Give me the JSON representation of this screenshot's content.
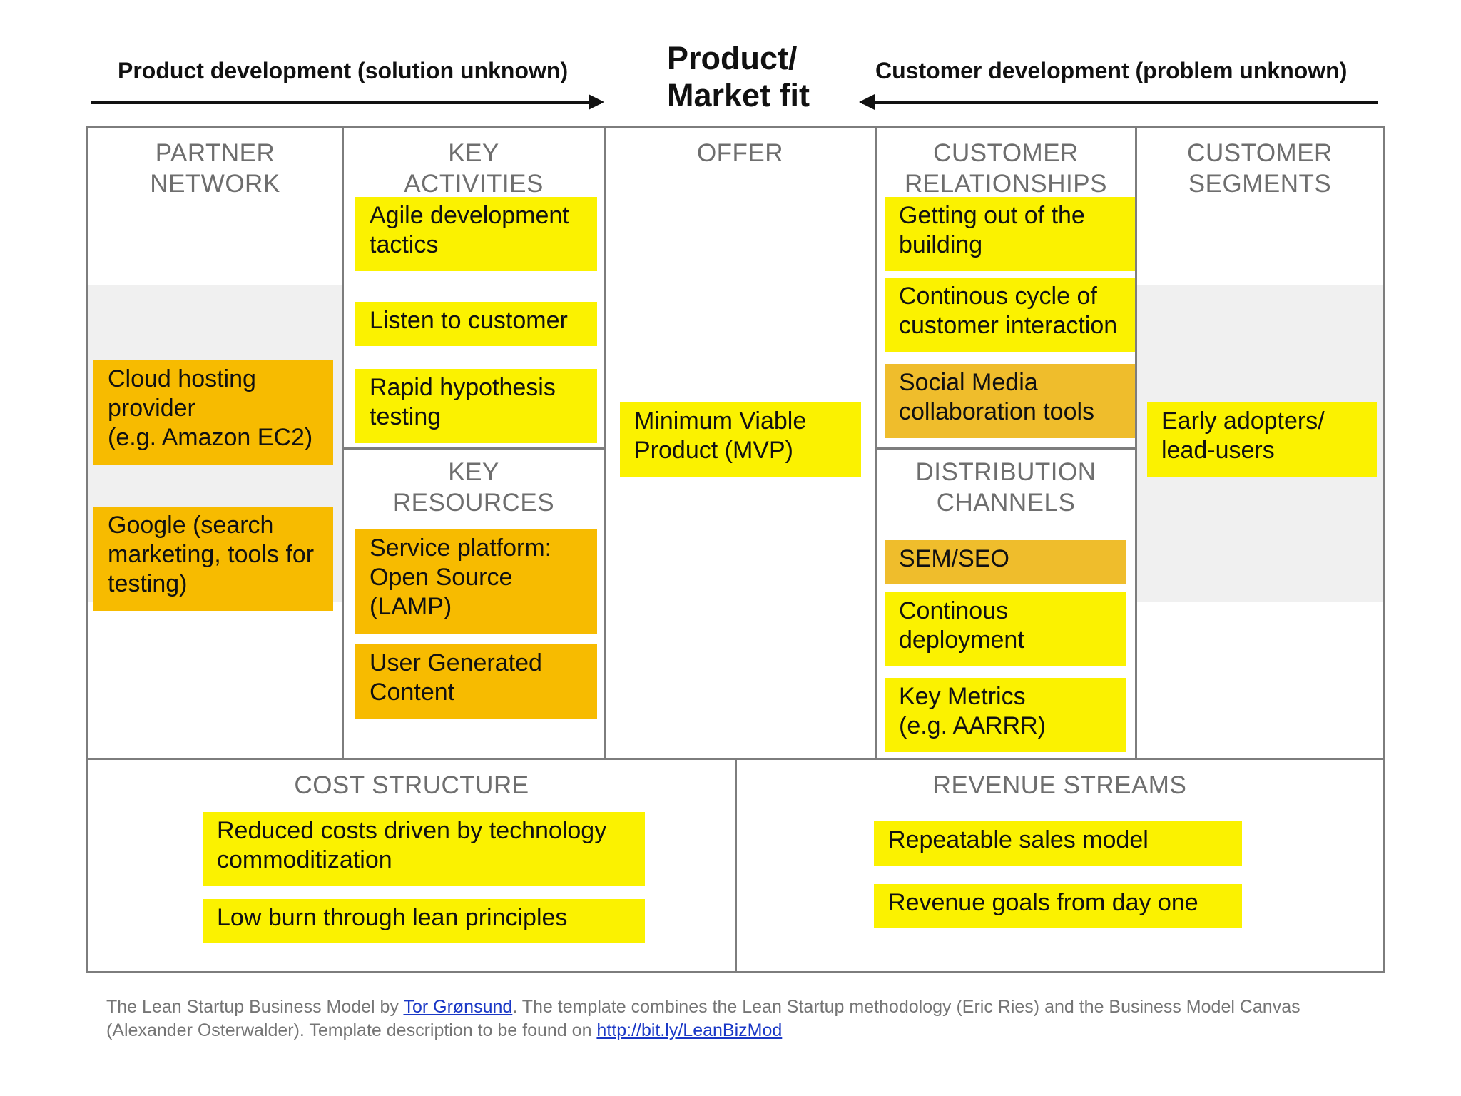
{
  "header": {
    "left_label": "Product development (solution unknown)",
    "right_label": "Customer development (problem unknown)",
    "center_line1": "Product/",
    "center_line2": "Market fit"
  },
  "canvas": {
    "partner_network": {
      "title1": "PARTNER",
      "title2": "NETWORK",
      "notes": [
        {
          "lines": [
            "Cloud hosting",
            "provider",
            "(e.g. Amazon EC2)"
          ]
        },
        {
          "lines": [
            "Google (search",
            "marketing, tools for",
            "testing)"
          ]
        }
      ]
    },
    "key_activities": {
      "title1": "KEY",
      "title2": "ACTIVITIES",
      "notes": [
        {
          "lines": [
            "Agile development",
            "tactics"
          ]
        },
        {
          "lines": [
            "Listen to customer"
          ]
        },
        {
          "lines": [
            "Rapid hypothesis",
            "testing"
          ]
        }
      ]
    },
    "key_resources": {
      "title1": "KEY",
      "title2": "RESOURCES",
      "notes": [
        {
          "lines": [
            "Service platform:",
            "Open Source",
            "(LAMP)"
          ]
        },
        {
          "lines": [
            "User Generated",
            "Content"
          ]
        }
      ]
    },
    "offer": {
      "title": "OFFER",
      "notes": [
        {
          "lines": [
            "Minimum Viable",
            "Product (MVP)"
          ]
        }
      ]
    },
    "customer_relationships": {
      "title1": "CUSTOMER",
      "title2": "RELATIONSHIPS",
      "notes": [
        {
          "lines": [
            "Getting out of the",
            "building"
          ]
        },
        {
          "lines": [
            "Continous cycle of",
            "customer interaction"
          ]
        },
        {
          "lines": [
            "Social Media",
            "collaboration tools"
          ]
        }
      ]
    },
    "distribution_channels": {
      "title1": "DISTRIBUTION",
      "title2": "CHANNELS",
      "notes": [
        {
          "lines": [
            "SEM/SEO"
          ]
        },
        {
          "lines": [
            "Continous",
            "deployment"
          ]
        },
        {
          "lines": [
            "Key Metrics",
            "(e.g. AARRR)"
          ]
        }
      ]
    },
    "customer_segments": {
      "title1": "CUSTOMER",
      "title2": "SEGMENTS",
      "notes": [
        {
          "lines": [
            "Early adopters/",
            "lead-users"
          ]
        }
      ]
    },
    "cost_structure": {
      "title": "COST STRUCTURE",
      "notes": [
        {
          "lines": [
            "Reduced costs driven by technology",
            "commoditization"
          ]
        },
        {
          "lines": [
            "Low burn through lean principles"
          ]
        }
      ]
    },
    "revenue_streams": {
      "title": "REVENUE STREAMS",
      "notes": [
        {
          "lines": [
            "Repeatable sales model"
          ]
        },
        {
          "lines": [
            "Revenue goals from day one"
          ]
        }
      ]
    }
  },
  "footer": {
    "text1": "The Lean Startup Business Model by ",
    "author_link": "Tor Grønsund",
    "text2": ". The template combines the Lean Startup methodology (Eric Ries) and the Business Model Canvas (Alexander Osterwalder). Template description to be found on ",
    "url_link": "http://bit.ly/LeanBizMod"
  }
}
